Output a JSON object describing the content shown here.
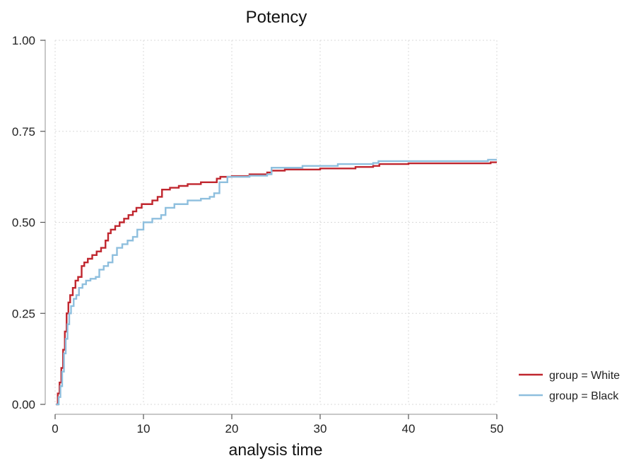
{
  "chart_data": {
    "type": "line",
    "title": "Potency",
    "xlabel": "analysis time",
    "ylabel": "",
    "xlim": [
      0,
      50
    ],
    "ylim": [
      0,
      1
    ],
    "xticks": [
      "0",
      "10",
      "20",
      "30",
      "40",
      "50"
    ],
    "yticks": [
      "0.00",
      "0.25",
      "0.50",
      "0.75",
      "1.00"
    ],
    "grid": true,
    "legend_position": "right",
    "series": [
      {
        "name": "group = White",
        "color": "#c0262e",
        "step": true,
        "x": [
          0.1,
          0.3,
          0.5,
          0.7,
          0.9,
          1.1,
          1.3,
          1.5,
          1.7,
          2.0,
          2.3,
          2.6,
          3.0,
          3.3,
          3.7,
          4.2,
          4.7,
          5.2,
          5.7,
          6.0,
          6.3,
          6.8,
          7.3,
          7.8,
          8.3,
          8.8,
          9.2,
          9.8,
          10.4,
          11.0,
          11.6,
          12.1,
          13.0,
          14.0,
          15.0,
          16.5,
          17.5,
          18.3,
          18.7,
          20.0,
          22.0,
          24.0,
          24.5,
          26.0,
          30.0,
          34.0,
          36.0,
          36.7,
          40.0,
          46.0,
          48.0,
          49.3,
          50.0
        ],
        "y": [
          0.0,
          0.03,
          0.06,
          0.1,
          0.15,
          0.2,
          0.25,
          0.28,
          0.3,
          0.32,
          0.34,
          0.35,
          0.38,
          0.39,
          0.4,
          0.41,
          0.42,
          0.43,
          0.45,
          0.47,
          0.48,
          0.49,
          0.5,
          0.51,
          0.52,
          0.53,
          0.54,
          0.55,
          0.55,
          0.56,
          0.57,
          0.59,
          0.595,
          0.6,
          0.605,
          0.61,
          0.61,
          0.62,
          0.625,
          0.627,
          0.632,
          0.637,
          0.642,
          0.645,
          0.648,
          0.652,
          0.655,
          0.66,
          0.662,
          0.662,
          0.662,
          0.665,
          0.665
        ]
      },
      {
        "name": "group = Black",
        "color": "#8ebfde",
        "step": true,
        "x": [
          0.1,
          0.4,
          0.6,
          0.8,
          1.0,
          1.2,
          1.4,
          1.6,
          1.8,
          2.1,
          2.4,
          2.7,
          3.1,
          3.5,
          4.0,
          4.6,
          5.0,
          5.5,
          6.0,
          6.5,
          7.0,
          7.6,
          8.2,
          8.8,
          9.3,
          10.0,
          11.0,
          12.0,
          12.5,
          13.5,
          15.0,
          16.5,
          17.5,
          18.0,
          18.6,
          19.5,
          22.0,
          24.0,
          24.5,
          28.0,
          32.0,
          36.0,
          36.6,
          40.0,
          46.0,
          49.0,
          50.0
        ],
        "y": [
          0.0,
          0.02,
          0.05,
          0.09,
          0.14,
          0.18,
          0.22,
          0.25,
          0.27,
          0.29,
          0.3,
          0.32,
          0.33,
          0.34,
          0.345,
          0.35,
          0.37,
          0.38,
          0.39,
          0.41,
          0.43,
          0.44,
          0.45,
          0.46,
          0.48,
          0.5,
          0.51,
          0.52,
          0.54,
          0.55,
          0.56,
          0.565,
          0.57,
          0.58,
          0.61,
          0.625,
          0.628,
          0.632,
          0.65,
          0.655,
          0.66,
          0.663,
          0.668,
          0.668,
          0.668,
          0.672,
          0.672
        ]
      }
    ]
  }
}
